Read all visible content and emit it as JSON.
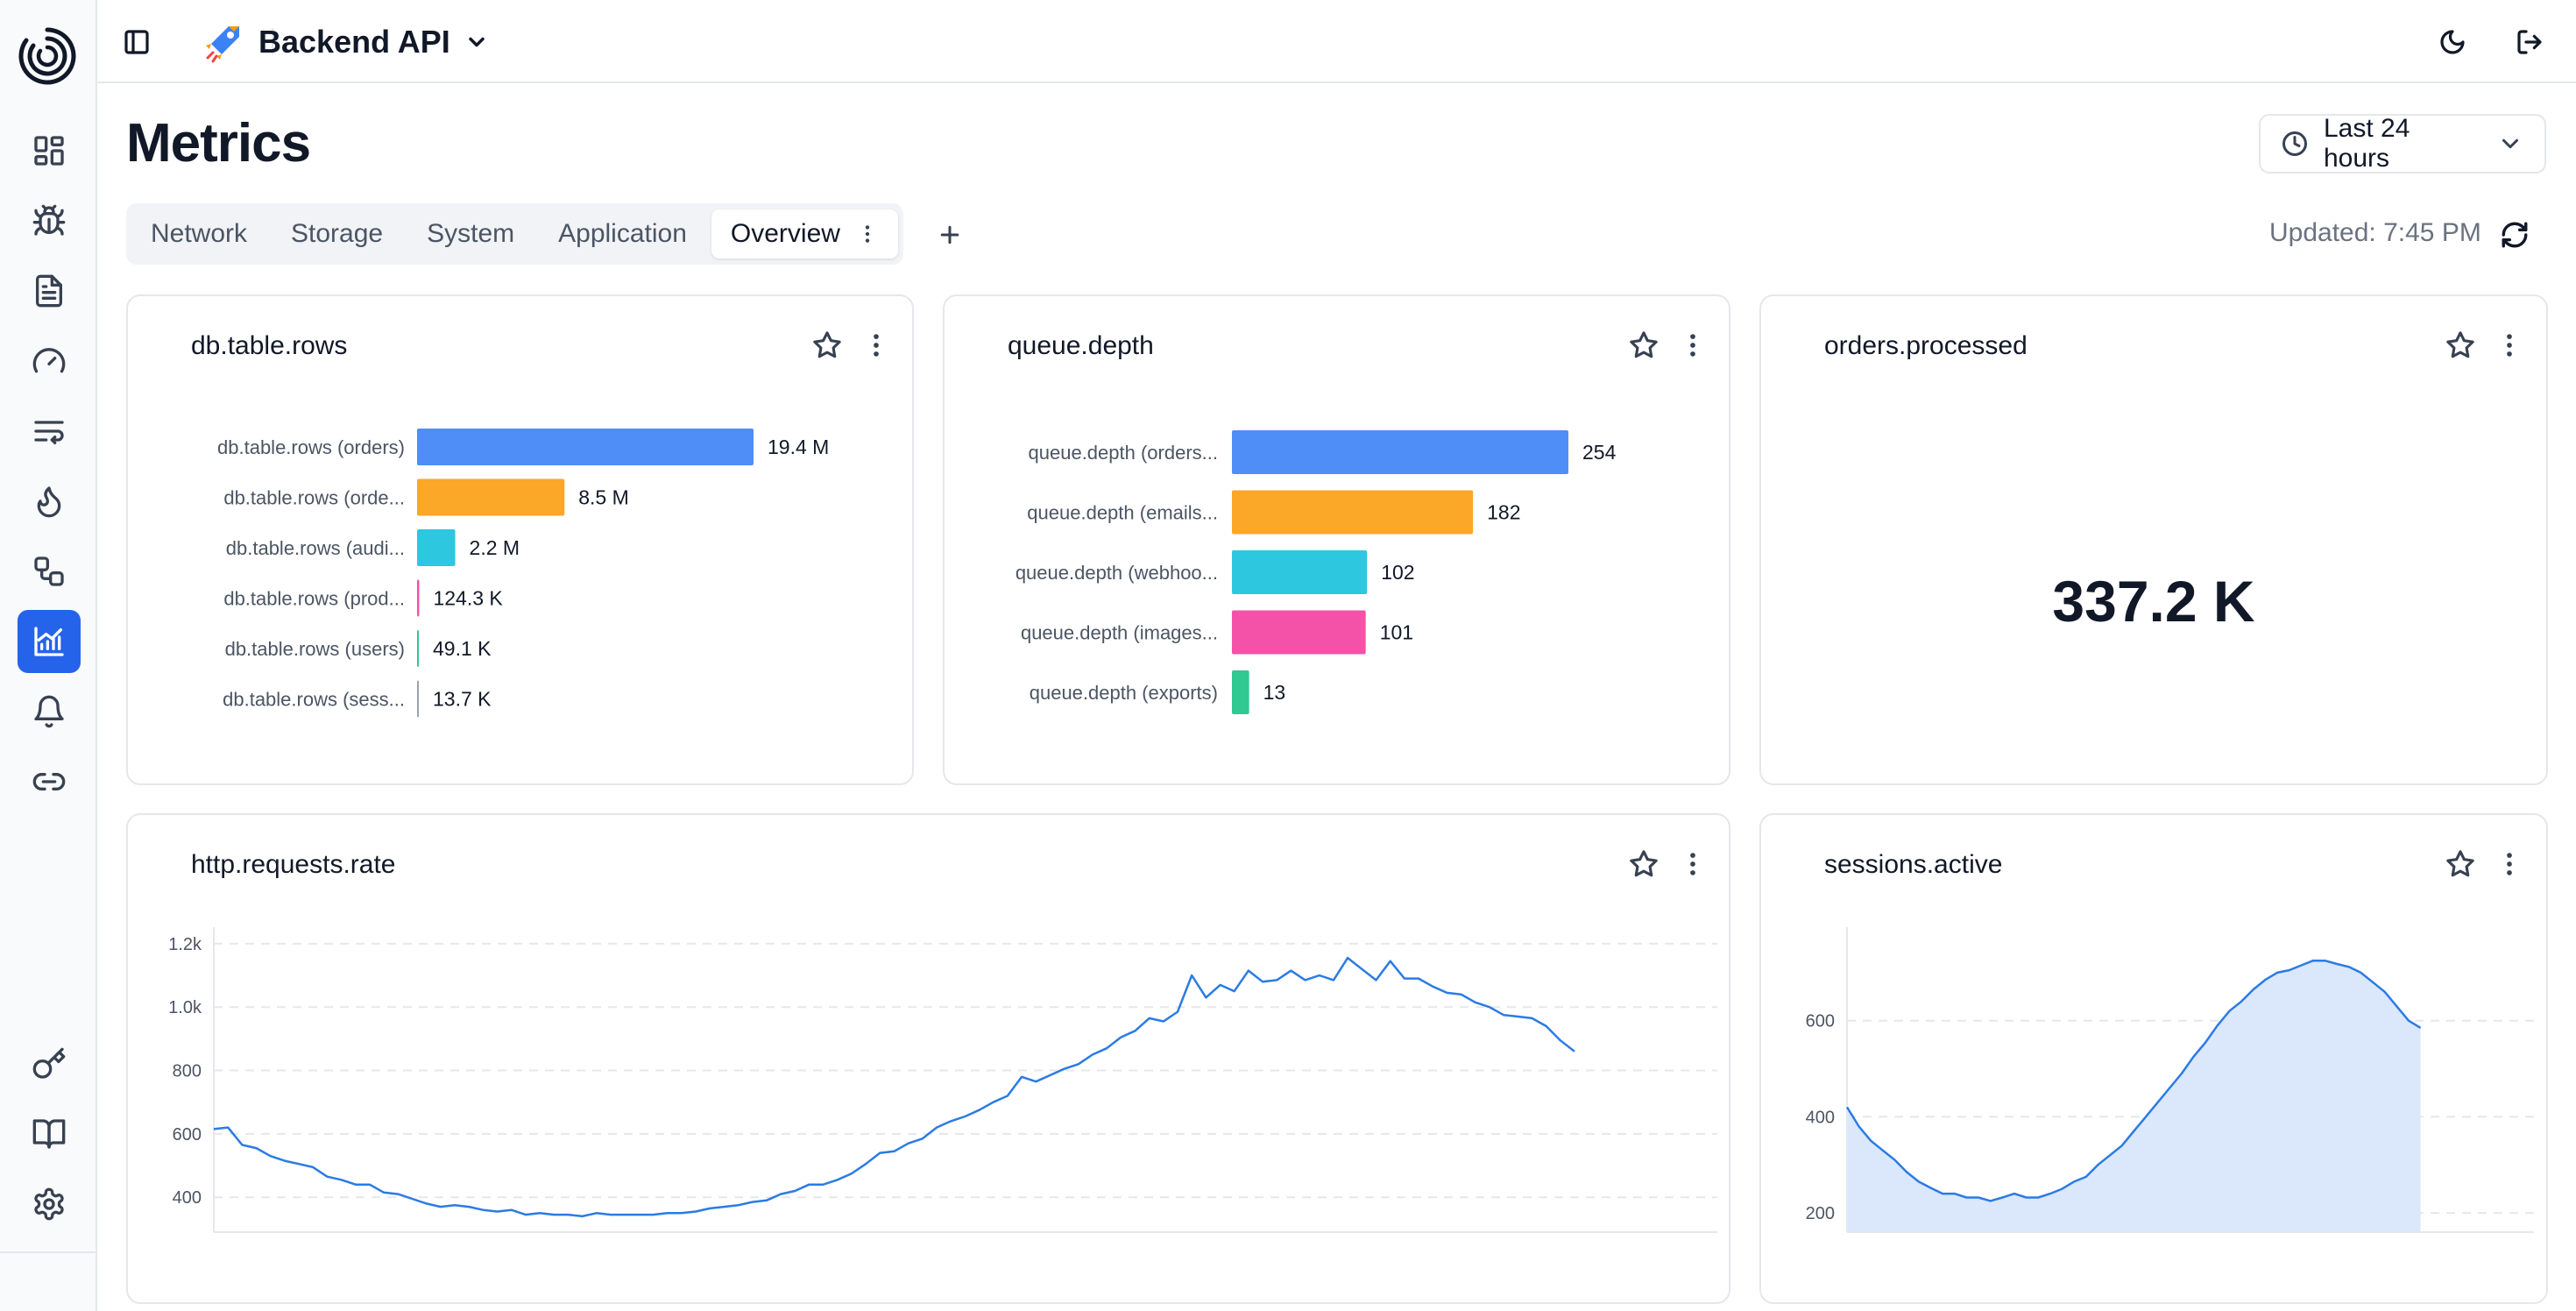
{
  "app": {
    "logo": "spiral-logo-icon"
  },
  "project": {
    "name": "Backend API",
    "icon": "rocket-icon"
  },
  "sidebar": {
    "items": [
      {
        "name": "dashboard-icon",
        "active": false
      },
      {
        "name": "bug-icon",
        "active": false
      },
      {
        "name": "document-icon",
        "active": false
      },
      {
        "name": "gauge-icon",
        "active": false
      },
      {
        "name": "list-wrap-icon",
        "active": false
      },
      {
        "name": "flame-icon",
        "active": false
      },
      {
        "name": "workflow-icon",
        "active": false
      },
      {
        "name": "metrics-chart-icon",
        "active": true
      },
      {
        "name": "bell-icon",
        "active": false
      },
      {
        "name": "link-icon",
        "active": false
      }
    ],
    "bottom_items": [
      "key-icon",
      "book-icon",
      "settings-icon"
    ]
  },
  "header": {
    "title": "Metrics",
    "time_range": "Last 24 hours",
    "updated": "Updated: 7:45 PM"
  },
  "tabs": [
    {
      "label": "Network",
      "active": false
    },
    {
      "label": "Storage",
      "active": false
    },
    {
      "label": "System",
      "active": false
    },
    {
      "label": "Application",
      "active": false
    },
    {
      "label": "Overview",
      "active": true
    }
  ],
  "cards": {
    "db_rows": {
      "title": "db.table.rows"
    },
    "queue": {
      "title": "queue.depth"
    },
    "orders": {
      "title": "orders.processed",
      "value": "337.2 K"
    },
    "http": {
      "title": "http.requests.rate"
    },
    "sessions": {
      "title": "sessions.active"
    }
  },
  "colors": {
    "blue": "#4f8ef7",
    "orange": "#fba728",
    "cyan": "#2dc7e0",
    "pink": "#f452a8",
    "green": "#2fc991",
    "line": "#2b7be4",
    "area": "#dbe7fb"
  },
  "chart_data": [
    {
      "id": "db_rows",
      "type": "bar",
      "orientation": "horizontal",
      "categories": [
        "db.table.rows (orders)",
        "db.table.rows (orde...",
        "db.table.rows (audi...",
        "db.table.rows (prod...",
        "db.table.rows (users)",
        "db.table.rows (sess..."
      ],
      "values": [
        19400000,
        8500000,
        2200000,
        124300,
        49100,
        13700
      ],
      "labels": [
        "19.4 M",
        "8.5 M",
        "2.2 M",
        "124.3 K",
        "49.1 K",
        "13.7 K"
      ],
      "colors": [
        "#4f8ef7",
        "#fba728",
        "#2dc7e0",
        "#f452a8",
        "#2fc991",
        "#9ca3af"
      ]
    },
    {
      "id": "queue",
      "type": "bar",
      "orientation": "horizontal",
      "categories": [
        "queue.depth (orders...",
        "queue.depth (emails...",
        "queue.depth (webhoo...",
        "queue.depth (images...",
        "queue.depth (exports)"
      ],
      "values": [
        254,
        182,
        102,
        101,
        13
      ],
      "labels": [
        "254",
        "182",
        "102",
        "101",
        "13"
      ],
      "colors": [
        "#4f8ef7",
        "#fba728",
        "#2dc7e0",
        "#f452a8",
        "#2fc991"
      ]
    },
    {
      "id": "http",
      "type": "line",
      "ylim": [
        290,
        1230
      ],
      "yticks": [
        400,
        600,
        800,
        "1.0k",
        "1.2k"
      ],
      "grid": true,
      "values": [
        615,
        620,
        565,
        555,
        530,
        515,
        505,
        495,
        465,
        455,
        440,
        440,
        415,
        410,
        395,
        380,
        370,
        375,
        370,
        360,
        355,
        360,
        345,
        350,
        345,
        345,
        340,
        350,
        345,
        345,
        345,
        345,
        350,
        350,
        355,
        365,
        370,
        375,
        385,
        390,
        410,
        420,
        440,
        440,
        455,
        475,
        505,
        540,
        545,
        570,
        585,
        620,
        640,
        655,
        675,
        700,
        720,
        780,
        765,
        785,
        805,
        820,
        850,
        870,
        905,
        925,
        965,
        955,
        985,
        1100,
        1030,
        1070,
        1050,
        1115,
        1080,
        1085,
        1115,
        1085,
        1100,
        1085,
        1155,
        1120,
        1085,
        1145,
        1090,
        1090,
        1065,
        1045,
        1040,
        1015,
        1000,
        975,
        970,
        965,
        940,
        895,
        860
      ]
    },
    {
      "id": "sessions",
      "type": "area",
      "ylim": [
        160,
        780
      ],
      "yticks": [
        200,
        400,
        600
      ],
      "grid": true,
      "values": [
        420,
        380,
        350,
        330,
        310,
        285,
        265,
        252,
        240,
        240,
        232,
        232,
        225,
        232,
        240,
        232,
        232,
        240,
        250,
        265,
        275,
        300,
        320,
        340,
        370,
        400,
        430,
        460,
        490,
        525,
        555,
        590,
        620,
        640,
        665,
        685,
        700,
        705,
        715,
        725,
        725,
        718,
        712,
        700,
        680,
        660,
        630,
        600,
        585
      ]
    }
  ]
}
